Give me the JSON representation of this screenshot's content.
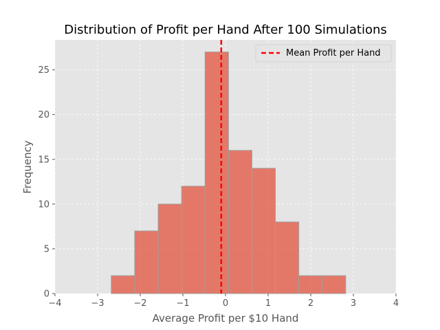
{
  "chart_data": {
    "type": "bar",
    "title": "Distribution of Profit per Hand After 100 Simulations",
    "xlabel": "Average Profit per $10 Hand",
    "ylabel": "Frequency",
    "xlim": [
      -4,
      4
    ],
    "ylim": [
      0,
      28.35
    ],
    "xticks": [
      -4,
      -3,
      -2,
      -1,
      0,
      1,
      2,
      3,
      4
    ],
    "xtick_labels": [
      "−4",
      "−3",
      "−2",
      "−1",
      "0",
      "1",
      "2",
      "3",
      "4"
    ],
    "yticks": [
      0,
      5,
      10,
      15,
      20,
      25
    ],
    "ytick_labels": [
      "0",
      "5",
      "10",
      "15",
      "20",
      "25"
    ],
    "bins": [
      {
        "x0": -2.68,
        "x1": -2.13,
        "count": 2
      },
      {
        "x0": -2.13,
        "x1": -1.58,
        "count": 7
      },
      {
        "x0": -1.58,
        "x1": -1.03,
        "count": 10
      },
      {
        "x0": -1.03,
        "x1": -0.48,
        "count": 12
      },
      {
        "x0": -0.48,
        "x1": 0.07,
        "count": 27
      },
      {
        "x0": 0.07,
        "x1": 0.62,
        "count": 16
      },
      {
        "x0": 0.62,
        "x1": 1.17,
        "count": 14
      },
      {
        "x0": 1.17,
        "x1": 1.72,
        "count": 8
      },
      {
        "x0": 1.72,
        "x1": 2.27,
        "count": 2
      },
      {
        "x0": 2.27,
        "x1": 2.82,
        "count": 2
      }
    ],
    "mean_line": {
      "x": -0.1,
      "label": "Mean Profit per Hand",
      "color": "#ff0000"
    },
    "bar_color": "#e24a33",
    "bar_edge_color": "#a0a0a0",
    "background_color": "#e5e5e5",
    "grid": true,
    "legend_position": "top-right"
  }
}
